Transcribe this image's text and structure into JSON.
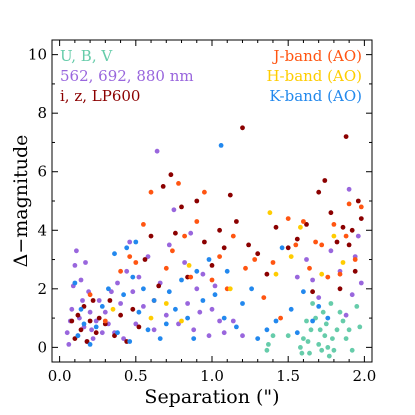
{
  "chart_data": {
    "type": "scatter",
    "xlabel": "Separation (\")",
    "ylabel": "Δ−magnitude",
    "xlim": [
      -0.05,
      2.05
    ],
    "ylim": [
      -0.5,
      10.5
    ],
    "x_ticks": [
      "0.0",
      "0.5",
      "1.0",
      "1.5",
      "2.0"
    ],
    "x_tick_values": [
      0,
      0.5,
      1.0,
      1.5,
      2.0
    ],
    "y_ticks": [
      "0",
      "2",
      "4",
      "6",
      "8",
      "10"
    ],
    "y_tick_values": [
      0,
      2,
      4,
      6,
      8,
      10
    ],
    "legend_placement": "top",
    "grid": false,
    "series": [
      {
        "name": "U, B, V",
        "color": "#66ccaa",
        "points": [
          [
            1.36,
            -0.1
          ],
          [
            1.37,
            0.1
          ],
          [
            1.4,
            0.4
          ],
          [
            1.5,
            0.4
          ],
          [
            1.58,
            0.0
          ],
          [
            1.59,
            -0.2
          ],
          [
            1.6,
            0.3
          ],
          [
            1.62,
            0.9
          ],
          [
            1.63,
            0.2
          ],
          [
            1.64,
            -0.2
          ],
          [
            1.65,
            0.6
          ],
          [
            1.66,
            1.5
          ],
          [
            1.68,
            1.0
          ],
          [
            1.7,
            0.1
          ],
          [
            1.71,
            0.6
          ],
          [
            1.72,
            -0.1
          ],
          [
            1.73,
            1.2
          ],
          [
            1.74,
            0.4
          ],
          [
            1.75,
            0.8
          ],
          [
            1.76,
            0.0
          ],
          [
            1.77,
            -0.3
          ],
          [
            1.78,
            1.5
          ],
          [
            1.79,
            0.3
          ],
          [
            1.8,
            -0.1
          ],
          [
            1.82,
            0.6
          ],
          [
            1.84,
            1.2
          ],
          [
            1.86,
            0.9
          ],
          [
            1.88,
            0.3
          ],
          [
            1.9,
            0.6
          ],
          [
            1.92,
            -0.1
          ],
          [
            1.95,
            1.4
          ],
          [
            1.97,
            0.7
          ]
        ]
      },
      {
        "name": "562, 692, 880 nm",
        "color": "#9966dd",
        "points": [
          [
            0.05,
            0.5
          ],
          [
            0.06,
            0.1
          ],
          [
            0.07,
            0.9
          ],
          [
            0.08,
            1.3
          ],
          [
            0.09,
            2.1
          ],
          [
            0.1,
            2.8
          ],
          [
            0.11,
            3.3
          ],
          [
            0.12,
            0.4
          ],
          [
            0.13,
            1.0
          ],
          [
            0.14,
            2.3
          ],
          [
            0.15,
            1.6
          ],
          [
            0.16,
            0.7
          ],
          [
            0.17,
            2.9
          ],
          [
            0.18,
            0.2
          ],
          [
            0.19,
            1.9
          ],
          [
            0.2,
            1.2
          ],
          [
            0.21,
            0.6
          ],
          [
            0.22,
            0.3
          ],
          [
            0.24,
            0.9
          ],
          [
            0.26,
            1.6
          ],
          [
            0.28,
            0.5
          ],
          [
            0.3,
            1.2
          ],
          [
            0.32,
            0.8
          ],
          [
            0.34,
            1.9
          ],
          [
            0.36,
            0.5
          ],
          [
            0.38,
            2.2
          ],
          [
            0.4,
            1.5
          ],
          [
            0.42,
            0.3
          ],
          [
            0.44,
            2.6
          ],
          [
            0.46,
            3.6
          ],
          [
            0.48,
            1.9
          ],
          [
            0.5,
            0.8
          ],
          [
            0.52,
            2.4
          ],
          [
            0.55,
            1.4
          ],
          [
            0.58,
            3.1
          ],
          [
            0.62,
            0.6
          ],
          [
            0.64,
            6.7
          ],
          [
            0.66,
            2.2
          ],
          [
            0.7,
            1.1
          ],
          [
            0.72,
            3.5
          ],
          [
            0.75,
            4.7
          ],
          [
            0.78,
            0.8
          ],
          [
            0.82,
            2.9
          ],
          [
            0.84,
            1.5
          ],
          [
            0.86,
            3.9
          ],
          [
            0.88,
            0.6
          ],
          [
            0.9,
            2.0
          ],
          [
            0.92,
            1.2
          ],
          [
            0.94,
            2.5
          ],
          [
            0.98,
            0.4
          ],
          [
            1.0,
            1.3
          ],
          [
            1.02,
            2.1
          ],
          [
            1.05,
            0.9
          ],
          [
            1.08,
            0.5
          ],
          [
            1.14,
            0.9
          ],
          [
            1.2,
            0.4
          ],
          [
            1.56,
            2.4
          ],
          [
            1.62,
            3.0
          ],
          [
            1.66,
            2.3
          ],
          [
            1.7,
            1.7
          ],
          [
            1.78,
            3.3
          ],
          [
            1.84,
            2.6
          ],
          [
            1.88,
            1.1
          ],
          [
            1.9,
            5.4
          ],
          [
            1.92,
            1.8
          ],
          [
            1.94,
            3.1
          ],
          [
            1.96,
            3.8
          ],
          [
            1.98,
            2.2
          ]
        ]
      },
      {
        "name": "i, z, LP600",
        "color": "#8b0000",
        "points": [
          [
            0.08,
            0.9
          ],
          [
            0.1,
            0.3
          ],
          [
            0.12,
            1.1
          ],
          [
            0.14,
            0.6
          ],
          [
            0.16,
            1.4
          ],
          [
            0.18,
            0.2
          ],
          [
            0.2,
            0.9
          ],
          [
            0.22,
            1.6
          ],
          [
            0.24,
            0.5
          ],
          [
            0.26,
            1.0
          ],
          [
            0.3,
            0.8
          ],
          [
            0.33,
            1.6
          ],
          [
            0.36,
            0.4
          ],
          [
            0.4,
            1.1
          ],
          [
            0.44,
            0.2
          ],
          [
            0.48,
            1.3
          ],
          [
            0.52,
            0.7
          ],
          [
            0.56,
            3.0
          ],
          [
            0.6,
            3.8
          ],
          [
            0.65,
            2.1
          ],
          [
            0.68,
            5.5
          ],
          [
            0.73,
            5.9
          ],
          [
            0.76,
            3.9
          ],
          [
            0.8,
            4.8
          ],
          [
            0.84,
            2.4
          ],
          [
            0.9,
            5.0
          ],
          [
            0.95,
            3.6
          ],
          [
            1.0,
            2.8
          ],
          [
            1.05,
            4.0
          ],
          [
            1.08,
            3.4
          ],
          [
            1.12,
            5.2
          ],
          [
            1.16,
            4.3
          ],
          [
            1.2,
            7.5
          ],
          [
            1.24,
            3.5
          ],
          [
            1.3,
            3.2
          ],
          [
            1.36,
            2.5
          ],
          [
            1.42,
            4.1
          ],
          [
            1.5,
            3.4
          ],
          [
            1.56,
            3.7
          ],
          [
            1.62,
            4.2
          ],
          [
            1.66,
            1.9
          ],
          [
            1.7,
            5.3
          ],
          [
            1.74,
            5.7
          ],
          [
            1.78,
            4.6
          ],
          [
            1.82,
            3.6
          ],
          [
            1.84,
            2.0
          ],
          [
            1.86,
            4.1
          ],
          [
            1.88,
            7.2
          ],
          [
            1.9,
            3.5
          ],
          [
            1.92,
            4.0
          ],
          [
            1.94,
            2.6
          ],
          [
            1.96,
            5.0
          ],
          [
            1.98,
            4.4
          ]
        ]
      },
      {
        "name": "J-band (AO)",
        "color": "#ff5511",
        "points": [
          [
            0.2,
            1.8
          ],
          [
            0.3,
            0.9
          ],
          [
            0.4,
            2.6
          ],
          [
            0.46,
            3.1
          ],
          [
            0.5,
            2.9
          ],
          [
            0.55,
            4.2
          ],
          [
            0.6,
            5.3
          ],
          [
            0.62,
            1.6
          ],
          [
            0.7,
            2.7
          ],
          [
            0.74,
            3.3
          ],
          [
            0.78,
            5.6
          ],
          [
            0.82,
            3.8
          ],
          [
            0.86,
            2.4
          ],
          [
            0.9,
            4.3
          ],
          [
            0.95,
            5.3
          ],
          [
            1.0,
            2.3
          ],
          [
            1.05,
            3.1
          ],
          [
            1.1,
            2.0
          ],
          [
            1.14,
            3.8
          ],
          [
            1.22,
            2.7
          ],
          [
            1.28,
            3.0
          ],
          [
            1.34,
            1.7
          ],
          [
            1.4,
            2.9
          ],
          [
            1.45,
            1.0
          ],
          [
            1.5,
            4.4
          ],
          [
            1.55,
            3.5
          ],
          [
            1.6,
            4.3
          ],
          [
            1.64,
            2.7
          ],
          [
            1.68,
            3.6
          ],
          [
            1.72,
            3.5
          ],
          [
            1.76,
            2.4
          ],
          [
            1.8,
            4.2
          ],
          [
            1.84,
            2.5
          ],
          [
            1.88,
            3.8
          ],
          [
            1.9,
            4.9
          ],
          [
            1.94,
            3.0
          ],
          [
            1.98,
            4.8
          ]
        ]
      },
      {
        "name": "H-band (AO)",
        "color": "#ffcc00",
        "points": [
          [
            0.35,
            1.3
          ],
          [
            0.6,
            1.0
          ],
          [
            0.7,
            1.5
          ],
          [
            0.8,
            0.9
          ],
          [
            0.85,
            2.8
          ],
          [
            1.12,
            2.0
          ],
          [
            1.38,
            4.6
          ],
          [
            1.42,
            2.5
          ],
          [
            1.52,
            3.1
          ],
          [
            1.58,
            4.1
          ],
          [
            1.72,
            2.5
          ],
          [
            1.8,
            3.8
          ],
          [
            1.86,
            2.9
          ]
        ]
      },
      {
        "name": "K-band (AO)",
        "color": "#2288ee",
        "points": [
          [
            0.1,
            2.2
          ],
          [
            0.12,
            0.4
          ],
          [
            0.14,
            1.3
          ],
          [
            0.16,
            0.8
          ],
          [
            0.2,
            0.1
          ],
          [
            0.24,
            0.7
          ],
          [
            0.28,
            1.4
          ],
          [
            0.32,
            2.0
          ],
          [
            0.36,
            3.2
          ],
          [
            0.38,
            0.5
          ],
          [
            0.42,
            1.8
          ],
          [
            0.44,
            3.4
          ],
          [
            0.46,
            0.2
          ],
          [
            0.48,
            2.4
          ],
          [
            0.5,
            3.6
          ],
          [
            0.52,
            1.2
          ],
          [
            0.55,
            2.0
          ],
          [
            0.58,
            0.6
          ],
          [
            0.62,
            1.6
          ],
          [
            0.66,
            0.3
          ],
          [
            0.7,
            0.8
          ],
          [
            0.72,
            1.9
          ],
          [
            0.76,
            1.3
          ],
          [
            0.8,
            2.3
          ],
          [
            0.84,
            1.0
          ],
          [
            0.88,
            0.3
          ],
          [
            0.9,
            2.6
          ],
          [
            0.94,
            1.6
          ],
          [
            0.98,
            3.0
          ],
          [
            1.02,
            1.8
          ],
          [
            1.06,
            6.9
          ],
          [
            1.08,
            1.0
          ],
          [
            1.1,
            2.6
          ],
          [
            1.16,
            0.7
          ],
          [
            1.2,
            1.5
          ],
          [
            1.26,
            2.0
          ],
          [
            1.3,
            0.3
          ],
          [
            1.36,
            0.6
          ],
          [
            1.42,
            0.9
          ],
          [
            1.46,
            3.4
          ],
          [
            1.52,
            1.3
          ],
          [
            1.56,
            0.5
          ],
          [
            1.6,
            1.9
          ],
          [
            1.66,
            0.9
          ],
          [
            1.7,
            1.4
          ],
          [
            1.76,
            1.0
          ]
        ]
      }
    ]
  }
}
